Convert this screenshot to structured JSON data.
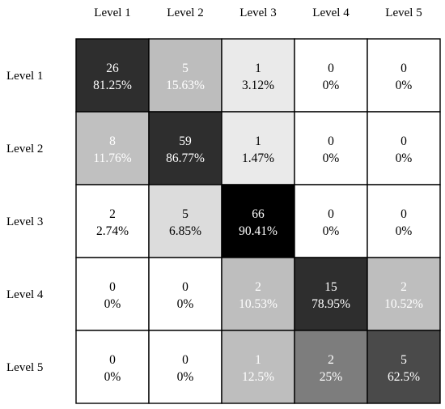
{
  "chart_data": {
    "type": "heatmap",
    "title": "",
    "xlabel": "",
    "ylabel": "",
    "col_labels": [
      "Level 1",
      "Level 2",
      "Level 3",
      "Level 4",
      "Level 5"
    ],
    "row_labels": [
      "Level 1",
      "Level 2",
      "Level 3",
      "Level 4",
      "Level 5"
    ],
    "legend": "none",
    "grid": true,
    "color_scale": {
      "low": "#ffffff",
      "high": "#000000"
    },
    "counts": [
      [
        26,
        5,
        1,
        0,
        0
      ],
      [
        8,
        59,
        1,
        0,
        0
      ],
      [
        2,
        5,
        66,
        0,
        0
      ],
      [
        0,
        0,
        2,
        15,
        2
      ],
      [
        0,
        0,
        1,
        2,
        5
      ]
    ],
    "percents": [
      [
        "81.25%",
        "15.63%",
        "3.12%",
        "0%",
        "0%"
      ],
      [
        "11.76%",
        "86.77%",
        "1.47%",
        "0%",
        "0%"
      ],
      [
        "2.74%",
        "6.85%",
        "90.41%",
        "0%",
        "0%"
      ],
      [
        "0%",
        "0%",
        "10.53%",
        "78.95%",
        "10.52%"
      ],
      [
        "0%",
        "0%",
        "12.5%",
        "25%",
        "62.5%"
      ]
    ],
    "cell_colors": [
      [
        "#2e2e2e",
        "#bdbdbd",
        "#eaeaea",
        "#ffffff",
        "#ffffff"
      ],
      [
        "#c0c0c0",
        "#2e2e2e",
        "#eaeaea",
        "#ffffff",
        "#ffffff"
      ],
      [
        "#ffffff",
        "#dcdcdc",
        "#000000",
        "#ffffff",
        "#ffffff"
      ],
      [
        "#ffffff",
        "#ffffff",
        "#bebebe",
        "#2e2e2e",
        "#bebebe"
      ],
      [
        "#ffffff",
        "#ffffff",
        "#bebebe",
        "#7d7d7d",
        "#4a4a4a"
      ]
    ],
    "text_colors": [
      [
        "#ffffff",
        "#ffffff",
        "#000000",
        "#000000",
        "#000000"
      ],
      [
        "#ffffff",
        "#ffffff",
        "#000000",
        "#000000",
        "#000000"
      ],
      [
        "#000000",
        "#000000",
        "#ffffff",
        "#000000",
        "#000000"
      ],
      [
        "#000000",
        "#000000",
        "#ffffff",
        "#ffffff",
        "#ffffff"
      ],
      [
        "#000000",
        "#000000",
        "#ffffff",
        "#ffffff",
        "#ffffff"
      ]
    ]
  }
}
